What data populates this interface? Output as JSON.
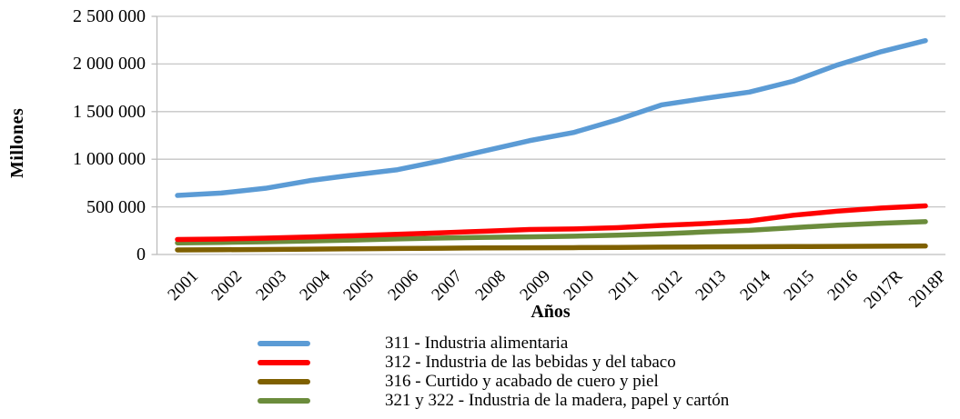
{
  "chart_data": {
    "type": "line",
    "title": "",
    "xlabel": "Años",
    "ylabel": "Millones",
    "ylim": [
      0,
      2500000
    ],
    "ytick_interval": 500000,
    "ytick_labels": [
      "0",
      "500 000",
      "1 000 000",
      "1 500 000",
      "2 000 000",
      "2 500 000"
    ],
    "grid": "horizontal",
    "grid_color": "#C6C6C6",
    "axis_color": "#BDBDBD",
    "legend_position": "bottom",
    "categories": [
      "2001",
      "2002",
      "2003",
      "2004",
      "2005",
      "2006",
      "2007",
      "2008",
      "2009",
      "2010",
      "2011",
      "2012",
      "2013",
      "2014",
      "2015",
      "2016",
      "2017R",
      "2018P"
    ],
    "series": [
      {
        "name": "311 - Industria alimentaria",
        "color": "#5B9BD5",
        "values": [
          620000,
          645000,
          695000,
          775000,
          835000,
          890000,
          985000,
          1090000,
          1195000,
          1280000,
          1415000,
          1570000,
          1640000,
          1705000,
          1820000,
          1990000,
          2130000,
          2245000
        ]
      },
      {
        "name": "312 - Industria de las bebidas y del tabaco",
        "color": "#FF0000",
        "values": [
          158000,
          162000,
          172000,
          184000,
          197000,
          212000,
          228000,
          245000,
          262000,
          268000,
          282000,
          305000,
          325000,
          352000,
          412000,
          455000,
          488000,
          510000
        ]
      },
      {
        "name": "316 - Curtido y acabado de cuero y piel",
        "color": "#7F6000",
        "values": [
          48000,
          50000,
          53000,
          56000,
          60000,
          63000,
          66000,
          69000,
          70000,
          72000,
          74000,
          77000,
          80000,
          81000,
          83000,
          85000,
          87000,
          89000
        ]
      },
      {
        "name": "321 y 322 - Industria de la madera, papel y cartón",
        "color": "#6B8C3C",
        "values": [
          122000,
          127000,
          133000,
          142000,
          152000,
          163000,
          173000,
          180000,
          185000,
          192000,
          203000,
          217000,
          237000,
          254000,
          282000,
          308000,
          328000,
          345000
        ]
      }
    ],
    "draw_order": [
      0,
      3,
      2,
      1
    ]
  }
}
